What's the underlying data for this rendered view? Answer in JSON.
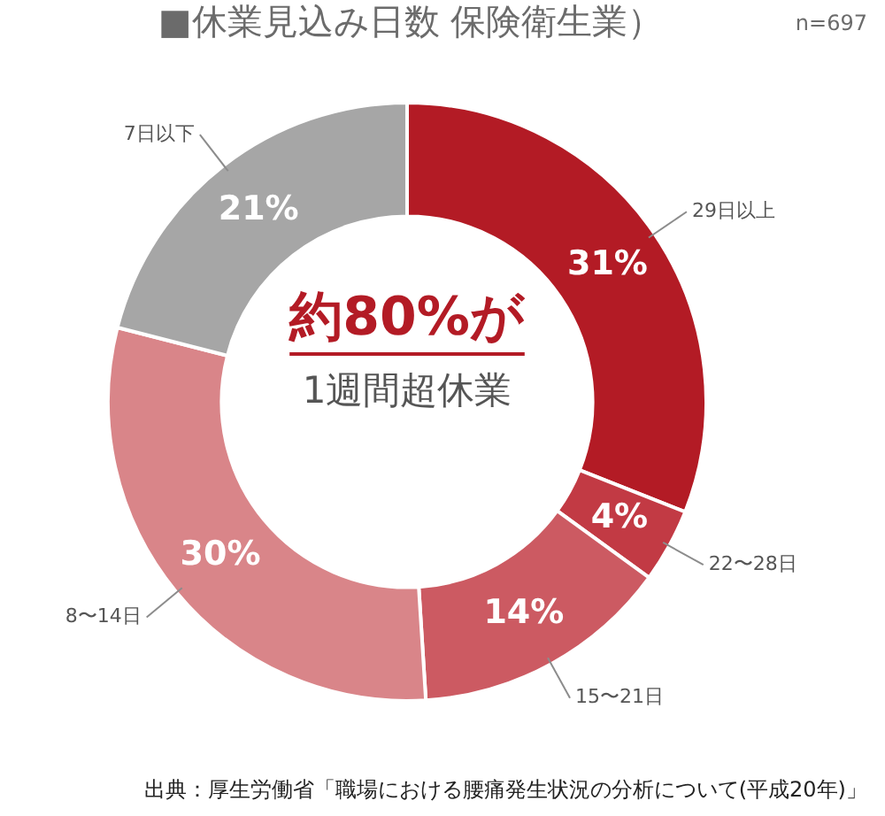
{
  "chart_data": {
    "type": "donut",
    "title": "■休業見込み日数 保険衛生業）",
    "subtitle": "n=697",
    "categories": [
      "29日以上",
      "22〜28日",
      "15〜21日",
      "8〜14日",
      "7日以下"
    ],
    "values": [
      31,
      4,
      14,
      30,
      21
    ],
    "value_labels": [
      "31%",
      "4%",
      "14%",
      "30%",
      "21%"
    ],
    "colors": [
      "#b31b25",
      "#c23a44",
      "#cc5a62",
      "#d98589",
      "#a6a6a6"
    ],
    "annotations": [
      "約80%が",
      "1週間超休業",
      "出典：厚生労働省「職場における腰痛発生状況の分析について(平成20年)」"
    ],
    "legend": false
  }
}
